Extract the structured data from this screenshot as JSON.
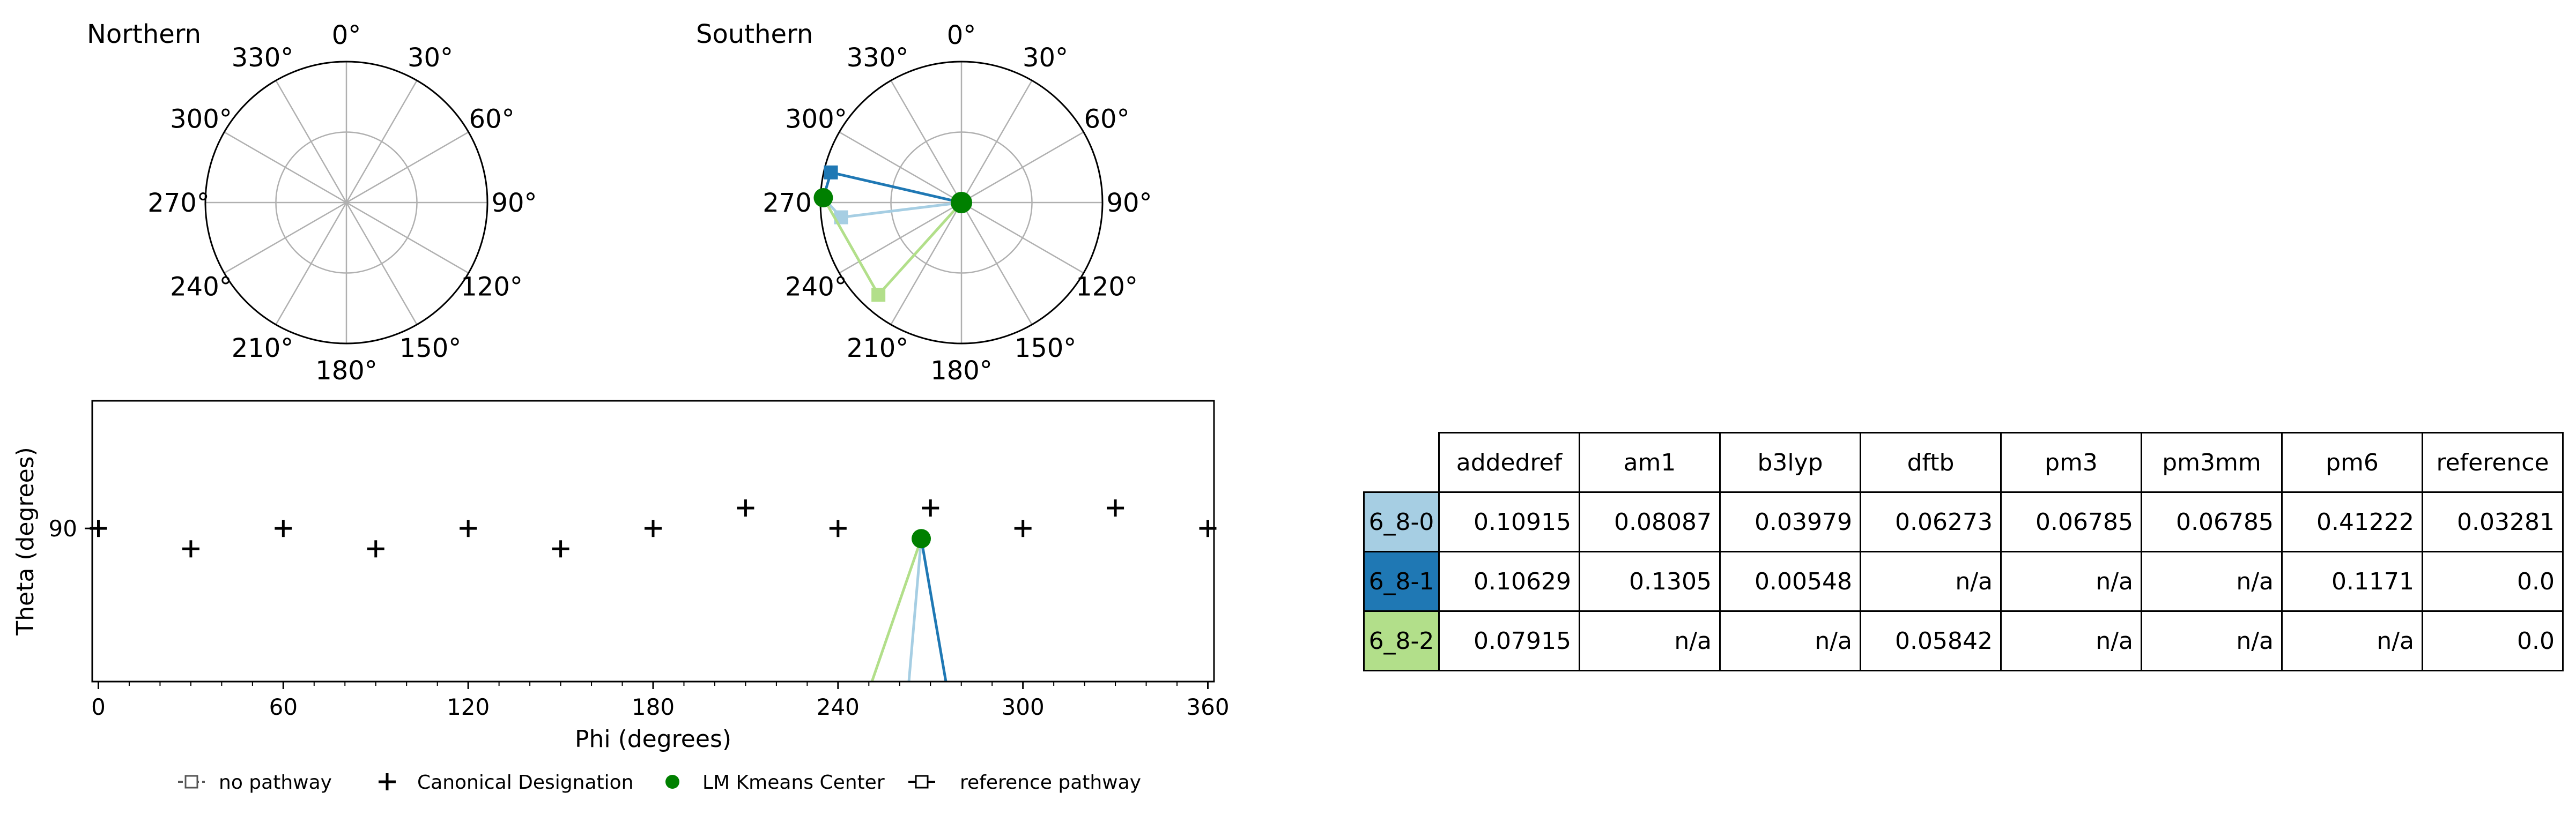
{
  "polar_titles": {
    "north": "Northern",
    "south": "Southern"
  },
  "polar_tick_labels": [
    "0°",
    "30°",
    "60°",
    "90°",
    "120°",
    "150°",
    "180°",
    "210°",
    "240°",
    "270°",
    "300°",
    "330°"
  ],
  "chart_data": [
    {
      "type": "scatter",
      "subtype": "polar",
      "title": "Northern",
      "angle_ticks_deg": [
        0,
        30,
        60,
        90,
        120,
        150,
        180,
        210,
        240,
        270,
        300,
        330
      ],
      "grid": true,
      "series": []
    },
    {
      "type": "line",
      "subtype": "polar",
      "title": "Southern",
      "angle_ticks_deg": [
        0,
        30,
        60,
        90,
        120,
        150,
        180,
        210,
        240,
        270,
        300,
        330
      ],
      "grid": true,
      "center_point": {
        "r": 0,
        "color": "#008000"
      },
      "series": [
        {
          "color": "#a6cee3",
          "points": [
            {
              "phi": 0,
              "r": 0
            },
            {
              "phi": 263,
              "r": 0.86
            },
            {
              "phi": 272,
              "r": 0.98
            }
          ]
        },
        {
          "color": "#1f78b4",
          "points": [
            {
              "phi": 0,
              "r": 0
            },
            {
              "phi": 283,
              "r": 0.95
            },
            {
              "phi": 272,
              "r": 0.98
            }
          ]
        },
        {
          "color": "#b2df8a",
          "points": [
            {
              "phi": 0,
              "r": 0
            },
            {
              "phi": 222,
              "r": 0.88
            },
            {
              "phi": 272,
              "r": 0.98
            }
          ]
        }
      ],
      "lm_kmeans_center": {
        "phi": 272,
        "r": 0.98,
        "color": "#008000"
      }
    },
    {
      "type": "scatter",
      "xlabel": "Phi (degrees)",
      "ylabel": "Theta (degrees)",
      "xlim": [
        -2,
        362
      ],
      "ylim": [
        60,
        115
      ],
      "xticks": [
        0,
        60,
        120,
        180,
        240,
        300,
        360
      ],
      "yticks": [
        90
      ],
      "canonical_designation": [
        {
          "phi": 0,
          "theta": 90
        },
        {
          "phi": 30,
          "theta": 86
        },
        {
          "phi": 60,
          "theta": 90
        },
        {
          "phi": 90,
          "theta": 86
        },
        {
          "phi": 120,
          "theta": 90
        },
        {
          "phi": 150,
          "theta": 86
        },
        {
          "phi": 180,
          "theta": 90
        },
        {
          "phi": 210,
          "theta": 94
        },
        {
          "phi": 240,
          "theta": 90
        },
        {
          "phi": 270,
          "theta": 94
        },
        {
          "phi": 300,
          "theta": 90
        },
        {
          "phi": 330,
          "theta": 94
        },
        {
          "phi": 360,
          "theta": 90
        }
      ],
      "lm_kmeans_center": {
        "phi": 267,
        "theta": 88,
        "color": "#008000"
      },
      "pathway_lines": [
        {
          "color": "#b2df8a",
          "from": {
            "phi": 267,
            "theta": 88
          },
          "to": {
            "phi": 251,
            "theta": 60
          }
        },
        {
          "color": "#a6cee3",
          "from": {
            "phi": 267,
            "theta": 88
          },
          "to": {
            "phi": 263,
            "theta": 60
          }
        },
        {
          "color": "#1f78b4",
          "from": {
            "phi": 267,
            "theta": 88
          },
          "to": {
            "phi": 275,
            "theta": 60
          }
        }
      ],
      "grid": false
    }
  ],
  "legend": [
    {
      "label": "no pathway",
      "marker": "dashed-line-open-square"
    },
    {
      "label": "Canonical Designation",
      "marker": "plus"
    },
    {
      "label": "LM Kmeans Center",
      "marker": "green-circle"
    },
    {
      "label": "reference pathway",
      "marker": "line-open-square"
    }
  ],
  "table": {
    "columns": [
      "addedref",
      "am1",
      "b3lyp",
      "dftb",
      "pm3",
      "pm3mm",
      "pm6",
      "reference"
    ],
    "rows": [
      {
        "label": "6_8-0",
        "color": "#a6cee3",
        "values": [
          "0.10915",
          "0.08087",
          "0.03979",
          "0.06273",
          "0.06785",
          "0.06785",
          "0.41222",
          "0.03281"
        ]
      },
      {
        "label": "6_8-1",
        "color": "#1f78b4",
        "values": [
          "0.10629",
          "0.1305",
          "0.00548",
          "n/a",
          "n/a",
          "n/a",
          "0.1171",
          "0.0"
        ]
      },
      {
        "label": "6_8-2",
        "color": "#b2df8a",
        "values": [
          "0.07915",
          "n/a",
          "n/a",
          "0.05842",
          "n/a",
          "n/a",
          "n/a",
          "0.0"
        ]
      }
    ]
  }
}
